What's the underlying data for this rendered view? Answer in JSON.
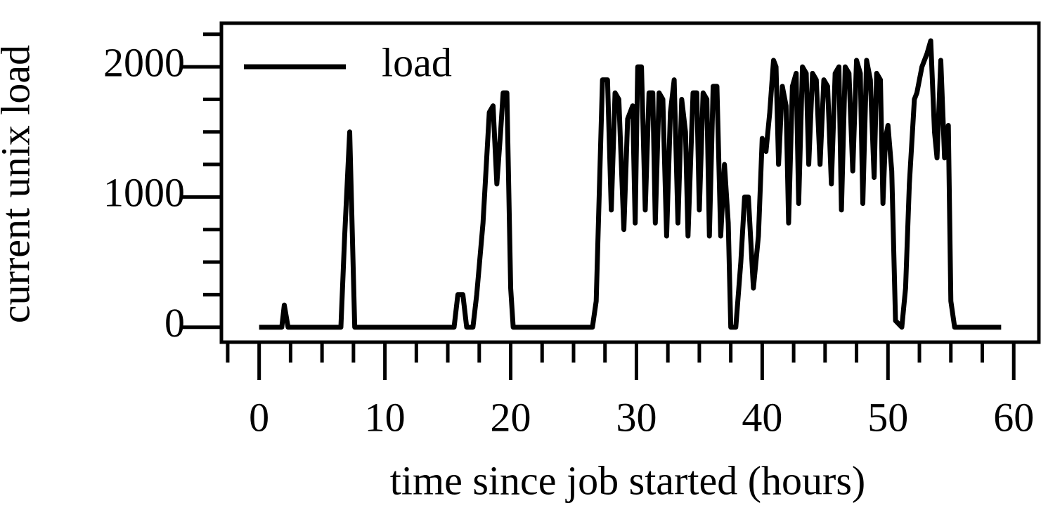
{
  "chart_data": {
    "type": "line",
    "xlabel": "time since job started (hours)",
    "ylabel": "current unix load",
    "legend": "upper left",
    "xlim": [
      -3,
      62
    ],
    "ylim": [
      -115,
      2335
    ],
    "xticks": [
      0,
      10,
      20,
      30,
      40,
      50,
      60
    ],
    "yticks": [
      0,
      1000,
      2000
    ],
    "xminorticks": [
      -2.5,
      2.5,
      5,
      7.5,
      12.5,
      15,
      17.5,
      22.5,
      25,
      27.5,
      32.5,
      35,
      37.5,
      42.5,
      45,
      47.5,
      52.5,
      55,
      57.5
    ],
    "yminorticks": [
      250,
      500,
      750,
      1250,
      1500,
      1750,
      2250
    ],
    "series": [
      {
        "name": "load",
        "color": "#000000",
        "x": [
          0,
          1.8,
          2,
          2.3,
          6.5,
          6.8,
          7.2,
          7.6,
          15.5,
          15.8,
          16.2,
          16.5,
          17,
          17.3,
          17.8,
          18.3,
          18.6,
          18.9,
          19.2,
          19.4,
          19.7,
          20,
          20.2,
          26.5,
          26.8,
          27.3,
          27.7,
          28,
          28.3,
          28.6,
          29,
          29.3,
          29.7,
          29.9,
          30.1,
          30.4,
          30.7,
          31,
          31.3,
          31.5,
          31.8,
          32.1,
          32.4,
          32.7,
          33,
          33.3,
          33.6,
          33.9,
          34.1,
          34.5,
          34.8,
          35,
          35.3,
          35.6,
          35.8,
          36.1,
          36.4,
          36.7,
          37,
          37.3,
          37.5,
          37.9,
          38.3,
          38.6,
          38.9,
          39.3,
          39.7,
          40,
          40.3,
          40.6,
          40.9,
          41.1,
          41.3,
          41.6,
          41.9,
          42.1,
          42.4,
          42.7,
          42.9,
          43.2,
          43.5,
          43.7,
          44,
          44.3,
          44.6,
          44.9,
          45.2,
          45.5,
          45.8,
          46.1,
          46.3,
          46.6,
          46.9,
          47.2,
          47.5,
          47.8,
          48,
          48.3,
          48.6,
          48.9,
          49.1,
          49.4,
          49.6,
          49.8,
          50,
          50.3,
          50.6,
          51.1,
          51.4,
          51.7,
          52.1,
          52.3,
          52.7,
          53.1,
          53.4,
          53.7,
          53.9,
          54.2,
          54.5,
          54.8,
          55,
          55.3,
          59
        ],
        "values": [
          0,
          0,
          170,
          0,
          0,
          700,
          1500,
          0,
          0,
          250,
          250,
          0,
          0,
          250,
          800,
          1650,
          1700,
          1100,
          1500,
          1800,
          1800,
          300,
          0,
          0,
          200,
          1900,
          1900,
          900,
          1800,
          1750,
          750,
          1600,
          1700,
          800,
          2000,
          2000,
          900,
          1800,
          1800,
          800,
          1800,
          1750,
          700,
          1650,
          1900,
          800,
          1750,
          1500,
          700,
          1800,
          1800,
          900,
          1800,
          1750,
          700,
          1850,
          1850,
          700,
          1250,
          800,
          0,
          0,
          500,
          1000,
          1000,
          300,
          700,
          1450,
          1350,
          1650,
          2050,
          2000,
          1250,
          1850,
          1700,
          800,
          1850,
          1950,
          950,
          2000,
          1950,
          1250,
          1950,
          1900,
          1250,
          1900,
          1850,
          1100,
          1950,
          2000,
          900,
          2000,
          1950,
          1200,
          2050,
          1950,
          950,
          2050,
          1900,
          1150,
          1950,
          1900,
          950,
          1450,
          1550,
          1200,
          50,
          0,
          300,
          1100,
          1750,
          1800,
          2000,
          2100,
          2200,
          1500,
          1300,
          2050,
          1300,
          1550,
          200,
          0,
          0
        ]
      }
    ]
  }
}
